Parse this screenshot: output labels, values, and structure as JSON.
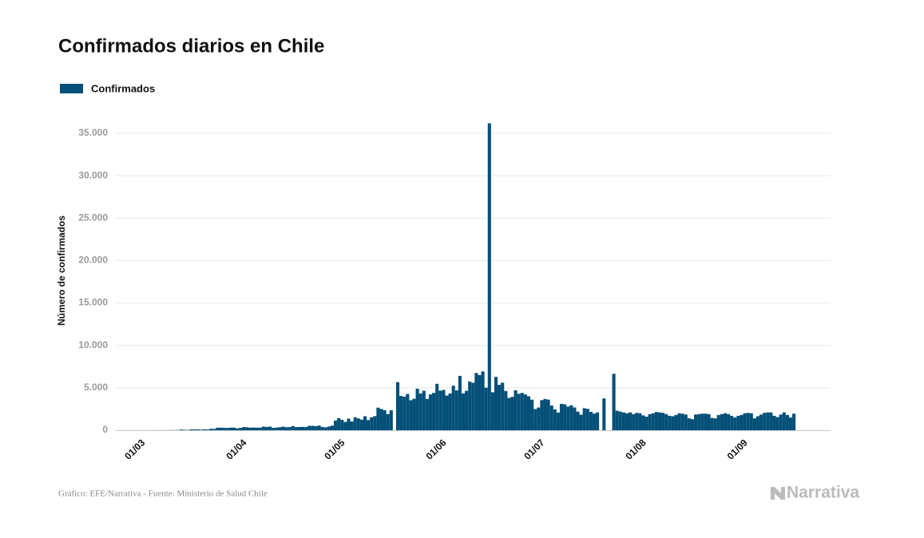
{
  "chart_data": {
    "type": "bar",
    "title": "Confirmados diarios en Chile",
    "series": [
      {
        "name": "Confirmados",
        "color": "#034f78",
        "values": [
          0,
          0,
          1,
          0,
          2,
          1,
          1,
          3,
          4,
          4,
          10,
          20,
          14,
          28,
          80,
          45,
          37,
          104,
          92,
          103,
          66,
          114,
          86,
          176,
          164,
          304,
          299,
          293,
          274,
          306,
          310,
          217,
          282,
          373,
          352,
          299,
          320,
          301,
          310,
          426,
          385,
          426,
          286,
          312,
          358,
          421,
          356,
          374,
          493,
          370,
          385,
          395,
          386,
          519,
          519,
          482,
          552,
          388,
          344,
          439,
          541,
          1138,
          1427,
          1228,
          980,
          1373,
          1032,
          1533,
          1391,
          1247,
          1656,
          1197,
          1525,
          1658,
          2660,
          2502,
          2365,
          1911,
          2353,
          null,
          5659,
          4038,
          3964,
          4276,
          3536,
          3709,
          4895,
          4328,
          4654,
          3695,
          4220,
          4400,
          5471,
          4664,
          4753,
          4091,
          4327,
          5246,
          4696,
          6405,
          4342,
          4649,
          5737,
          5596,
          6754,
          6509,
          6938,
          5013,
          36179,
          4475,
          6290,
          5355,
          5607,
          4627,
          3804,
          3935,
          4713,
          4296,
          4400,
          4216,
          4000,
          3600,
          2498,
          2675,
          3548,
          3685,
          3613,
          2912,
          2462,
          2081,
          3108,
          3058,
          2791,
          2942,
          2688,
          2196,
          1836,
          2598,
          2528,
          2165,
          1959,
          2100,
          null,
          3746,
          null,
          null,
          6650,
          2300,
          2200,
          2100,
          2000,
          2100,
          1900,
          2050,
          2000,
          1750,
          1600,
          1900,
          2000,
          2150,
          2100,
          2050,
          1900,
          1700,
          1650,
          1800,
          2000,
          1950,
          1850,
          1400,
          1300,
          1850,
          1900,
          1950,
          1950,
          1900,
          1450,
          1400,
          1800,
          1900,
          2000,
          1900,
          1700,
          1500,
          1700,
          1800,
          2000,
          2050,
          2000,
          1400,
          1650,
          1850,
          2050,
          2100,
          2100,
          1700,
          1550,
          1850,
          2100,
          1800,
          1500,
          1950
        ]
      }
    ],
    "categories": [
      "01/03",
      null,
      null,
      null,
      null,
      null,
      null,
      null,
      null,
      null,
      null,
      null,
      null,
      null,
      null,
      null,
      null,
      null,
      null,
      null,
      null,
      null,
      null,
      null,
      null,
      null,
      null,
      null,
      null,
      null,
      null,
      "01/04",
      null,
      null,
      null,
      null,
      null,
      null,
      null,
      null,
      null,
      null,
      null,
      null,
      null,
      null,
      null,
      null,
      null,
      null,
      null,
      null,
      null,
      null,
      null,
      null,
      null,
      null,
      null,
      null,
      null,
      "01/05",
      null,
      null,
      null,
      null,
      null,
      null,
      null,
      null,
      null,
      null,
      null,
      null,
      null,
      null,
      null,
      null,
      null,
      null,
      null,
      null,
      null,
      null,
      null,
      null,
      null,
      null,
      null,
      null,
      null,
      null,
      "01/06",
      null,
      null,
      null,
      null,
      null,
      null,
      null,
      null,
      null,
      null,
      null,
      null,
      null,
      null,
      null,
      null,
      null,
      null,
      null,
      null,
      null,
      null,
      null,
      null,
      null,
      null,
      null,
      null,
      null,
      "01/07",
      null,
      null,
      null,
      null,
      null,
      null,
      null,
      null,
      null,
      null,
      null,
      null,
      null,
      null,
      null,
      null,
      null,
      null,
      null,
      null,
      null,
      null,
      null,
      null,
      null,
      null,
      null,
      null,
      null,
      null,
      "01/08",
      null,
      null,
      null,
      null,
      null,
      null,
      null,
      null,
      null,
      null,
      null,
      null,
      null,
      null,
      null,
      null,
      null,
      null,
      null,
      null,
      null,
      null,
      null,
      null,
      null,
      null,
      null,
      null,
      null,
      null,
      "01/09",
      null,
      null,
      null,
      null,
      null,
      null,
      null,
      null,
      null,
      null,
      null,
      null,
      null,
      null,
      null,
      null,
      null
    ],
    "ylabel": "Número de confirmados",
    "ylim": [
      0,
      35000
    ],
    "yticks": [
      0,
      {
        "value": 5000,
        "label": "5.000"
      },
      {
        "value": 10000,
        "label": "10.000"
      },
      {
        "value": 15000,
        "label": "15.000"
      },
      {
        "value": 20000,
        "label": "20.000"
      },
      {
        "value": 25000,
        "label": "25.000"
      },
      {
        "value": 30000,
        "label": "30.000"
      },
      {
        "value": 35000,
        "label": "35.000"
      }
    ],
    "grid": true,
    "source": "Gráfico: EFE/Narrativa - Fuente: Ministerio de Salud Chile",
    "logo": "Narrativa"
  }
}
